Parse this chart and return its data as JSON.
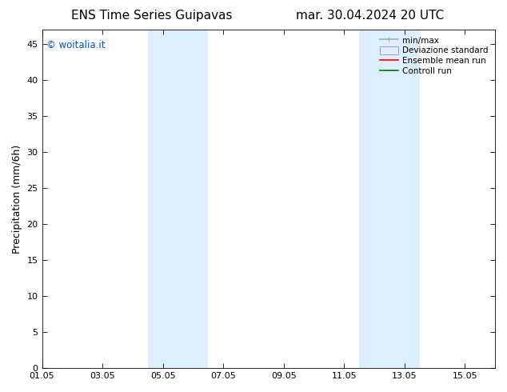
{
  "title_left": "ENS Time Series Guipavas",
  "title_right": "mar. 30.04.2024 20 UTC",
  "ylabel": "Precipitation (mm/6h)",
  "watermark": "© woitalia.it",
  "watermark_color": "#0055cc",
  "ylim": [
    0,
    47
  ],
  "yticks": [
    0,
    5,
    10,
    15,
    20,
    25,
    30,
    35,
    40,
    45
  ],
  "xlim": [
    0,
    15
  ],
  "xtick_labels": [
    "01.05",
    "03.05",
    "05.05",
    "07.05",
    "09.05",
    "11.05",
    "13.05",
    "15.05"
  ],
  "xtick_positions": [
    0,
    2,
    4,
    6,
    8,
    10,
    12,
    14
  ],
  "shaded_bands": [
    {
      "x_start": 3.5,
      "x_end": 5.5
    },
    {
      "x_start": 10.5,
      "x_end": 12.5
    }
  ],
  "shaded_color": "#ddeeff",
  "background_color": "#ffffff",
  "legend_entries": [
    {
      "label": "min/max",
      "color": "#aaaaaa",
      "lw": 1.2,
      "ls": "-",
      "type": "line_with_caps"
    },
    {
      "label": "Deviazione standard",
      "color": "#ddeeff",
      "border": "#aaaaaa",
      "lw": 0.8,
      "type": "patch"
    },
    {
      "label": "Ensemble mean run",
      "color": "#ff0000",
      "lw": 1.2,
      "ls": "-",
      "type": "line"
    },
    {
      "label": "Controll run",
      "color": "#007700",
      "lw": 1.2,
      "ls": "-",
      "type": "line"
    }
  ],
  "title_fontsize": 11,
  "axis_fontsize": 9,
  "tick_fontsize": 8,
  "legend_fontsize": 7.5
}
